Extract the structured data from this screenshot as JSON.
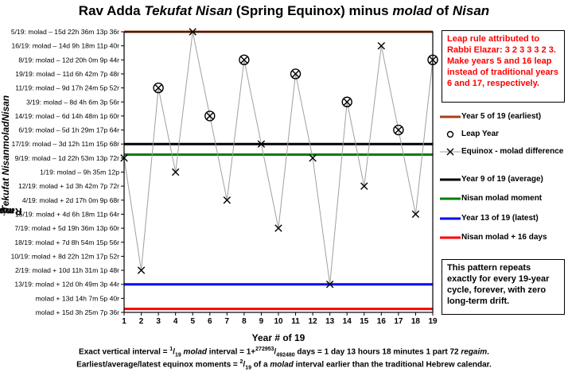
{
  "chart_data": {
    "type": "line",
    "title_parts": [
      {
        "text": "Rav Adda ",
        "italic": false
      },
      {
        "text": "Tekufat Nisan",
        "italic": true
      },
      {
        "text": " (Spring Equinox) minus ",
        "italic": false
      },
      {
        "text": "molad",
        "italic": true
      },
      {
        "text": " of ",
        "italic": false
      },
      {
        "text": "Nisan",
        "italic": true
      }
    ],
    "ylabel_parts": [
      {
        "text": "Rav Adda ",
        "italic": false
      },
      {
        "text": "Tekufat Nisan",
        "italic": true
      },
      {
        "text": " minus ",
        "italic": false
      },
      {
        "text": "molad",
        "italic": true
      },
      {
        "text": " of ",
        "italic": false
      },
      {
        "text": "Nisan",
        "italic": true
      }
    ],
    "xlabel": "Year # of 19",
    "x": [
      1,
      2,
      3,
      4,
      5,
      6,
      7,
      8,
      9,
      10,
      11,
      12,
      13,
      14,
      15,
      16,
      17,
      18,
      19
    ],
    "ylim": [
      0,
      19
    ],
    "y_ticks": [
      "molad + 15d 3h 25m 7p 36r",
      "molad + 13d 14h 7m 5p 40r",
      "13/19: molad + 12d 0h 49m 3p 44r",
      "2/19: molad + 10d 11h 31m 1p 48r",
      "10/19: molad + 8d 22h 12m 17p 52r",
      "18/19: molad + 7d 8h 54m 15p 56r",
      "7/19: molad + 5d 19h 36m 13p 60r",
      "15/19: molad + 4d 6h 18m 11p 64r",
      "4/19: molad + 2d 17h 0m 9p 68r",
      "12/19: molad + 1d 3h 42m 7p 72r",
      "1/19: molad – 9h 35m 12p",
      "9/19: molad – 1d 22h 53m 13p 72r",
      "17/19: molad – 3d 12h 11m 15p 68r",
      "6/19: molad – 5d 1h 29m 17p 64r",
      "14/19: molad – 6d 14h 48m 1p 60r",
      "3/19: molad – 8d 4h 6m 3p 56r",
      "11/19: molad – 9d 17h 24m 5p 52r",
      "19/19: molad – 11d 6h 42m 7p 48r",
      "8/19: molad – 12d 20h 0m 9p 44r",
      "16/19: molad – 14d 9h 18m 11p 40r",
      "5/19: molad – 15d 22h 36m 13p 36r"
    ],
    "series": [
      {
        "name": "Equinox - molad difference",
        "values": [
          10,
          2,
          15,
          9,
          19,
          13,
          7,
          17,
          11,
          5,
          16,
          10,
          1,
          14,
          8,
          18,
          12,
          6,
          17
        ]
      }
    ],
    "leap_years": [
      3,
      6,
      8,
      11,
      14,
      17,
      19
    ],
    "reference_lines": [
      {
        "name": "Year 5 of 19 (earliest)",
        "value": 19,
        "color": "#a0441e"
      },
      {
        "name": "Year 9 of 19 (average)",
        "value": 11,
        "color": "#000000"
      },
      {
        "name": "Nisan molad moment",
        "value": 10.245,
        "color": "#008000"
      },
      {
        "name": "Year 13 of 19 (latest)",
        "value": 1,
        "color": "#0000ff"
      },
      {
        "name": "Nisan molad + 16 days",
        "value": -0.75,
        "color": "#ff0000"
      }
    ],
    "legend_items": [
      "Leap Year",
      "Equinox - molad difference"
    ],
    "legend_placement": "right",
    "line_color": "#a0a0a0",
    "grid": false
  },
  "notes": {
    "rule": "Leap rule attributed to Rabbi Elazar:  3 2 3 3 3 2 3. Make years 5 and 16 leap instead of traditional years 6 and 17, respectively.",
    "pattern": "This pattern repeats exactly for every 19-year cycle, forever, with zero long-term drift."
  },
  "footnotes": {
    "line1_parts": [
      {
        "text": "Exact vertical interval = ",
        "style": "normal"
      },
      {
        "text": "1",
        "style": "sup"
      },
      {
        "text": "/",
        "style": "normal"
      },
      {
        "text": "19",
        "style": "sub"
      },
      {
        "text": " ",
        "style": "normal"
      },
      {
        "text": "molad",
        "style": "italic"
      },
      {
        "text": " interval = 1+",
        "style": "normal"
      },
      {
        "text": "272953",
        "style": "sup"
      },
      {
        "text": "/",
        "style": "normal"
      },
      {
        "text": "492480",
        "style": "sub"
      },
      {
        "text": " days = 1 day 13 hours 18 minutes 1 part 72 ",
        "style": "normal"
      },
      {
        "text": "regaim",
        "style": "italic"
      },
      {
        "text": ".",
        "style": "normal"
      }
    ],
    "line2_parts": [
      {
        "text": "Earliest/average/latest equinox moments = ",
        "style": "normal"
      },
      {
        "text": "2",
        "style": "sup"
      },
      {
        "text": "/",
        "style": "normal"
      },
      {
        "text": "19",
        "style": "sub"
      },
      {
        "text": " of a ",
        "style": "normal"
      },
      {
        "text": "molad",
        "style": "italic"
      },
      {
        "text": " interval earlier than the traditional Hebrew calendar.",
        "style": "normal"
      }
    ]
  }
}
